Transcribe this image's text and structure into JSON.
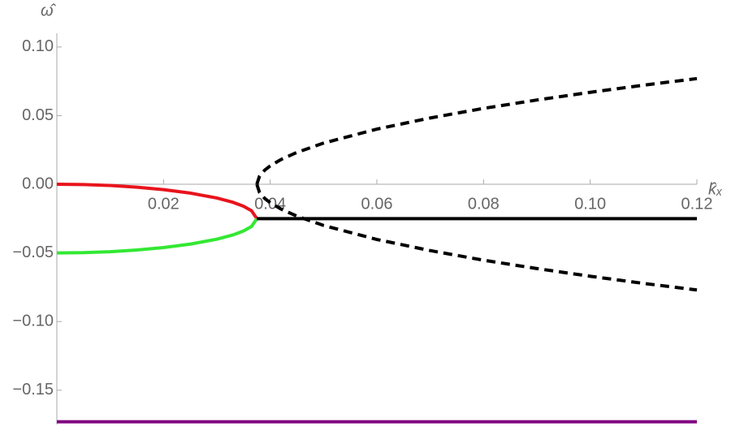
{
  "chart_data": {
    "type": "line",
    "x_label": "k̂ₓ",
    "y_label": "ω̂",
    "x": [
      0,
      0.005,
      0.01,
      0.015,
      0.02,
      0.025,
      0.03,
      0.033,
      0.035,
      0.0365,
      0.0375,
      0.038,
      0.039,
      0.04,
      0.042,
      0.045,
      0.05,
      0.06,
      0.07,
      0.08,
      0.09,
      0.1,
      0.11,
      0.12
    ],
    "series": [
      {
        "color": "#e8141c",
        "dashed": false,
        "values": [
          0,
          -0.0002,
          -0.0009,
          -0.0021,
          -0.0039,
          -0.0064,
          -0.01,
          -0.0131,
          -0.016,
          -0.0193,
          -0.025,
          null,
          null,
          null,
          null,
          null,
          null,
          null,
          null,
          null,
          null,
          null,
          null,
          null
        ]
      },
      {
        "color": "#33e833",
        "dashed": false,
        "values": [
          -0.05,
          -0.0498,
          -0.0491,
          -0.0479,
          -0.0461,
          -0.0436,
          -0.04,
          -0.0369,
          -0.034,
          -0.0307,
          -0.025,
          null,
          null,
          null,
          null,
          null,
          null,
          null,
          null,
          null,
          null,
          null,
          null,
          null
        ]
      },
      {
        "color": "#000000",
        "dashed": false,
        "values": [
          null,
          null,
          null,
          null,
          null,
          null,
          null,
          null,
          null,
          null,
          -0.025,
          -0.025,
          -0.025,
          -0.025,
          -0.025,
          -0.025,
          -0.025,
          -0.025,
          -0.025,
          -0.025,
          -0.025,
          -0.025,
          -0.025,
          -0.025
        ]
      },
      {
        "color": "#000000",
        "dashed": true,
        "values": [
          null,
          null,
          null,
          null,
          null,
          null,
          null,
          null,
          null,
          null,
          0,
          0.006,
          0.0104,
          0.0134,
          0.018,
          0.0232,
          0.03,
          0.0402,
          0.0483,
          0.0553,
          0.0614,
          0.067,
          0.0722,
          0.077
        ]
      },
      {
        "color": "#000000",
        "dashed": true,
        "values": [
          null,
          null,
          null,
          null,
          null,
          null,
          null,
          null,
          null,
          null,
          0,
          -0.006,
          -0.0104,
          -0.0134,
          -0.018,
          -0.0232,
          -0.03,
          -0.0402,
          -0.0483,
          -0.0553,
          -0.0614,
          -0.067,
          -0.0722,
          -0.077
        ]
      },
      {
        "color": "#800080",
        "dashed": false,
        "values": [
          -0.173,
          -0.173,
          -0.173,
          -0.173,
          -0.173,
          -0.173,
          -0.173,
          -0.173,
          -0.173,
          -0.173,
          -0.173,
          -0.173,
          -0.173,
          -0.173,
          -0.173,
          -0.173,
          -0.173,
          -0.173,
          -0.173,
          -0.173,
          -0.173,
          -0.173,
          -0.173,
          -0.173
        ]
      }
    ],
    "xlim": [
      0,
      0.12
    ],
    "ylim": [
      -0.175,
      0.11
    ],
    "xticks": [
      0.02,
      0.04,
      0.06,
      0.08,
      {
        "value": 0.1,
        "label": "0.10"
      },
      0.12
    ],
    "yticks": [
      {
        "value": 0.1,
        "label": "0.10"
      },
      0.05,
      {
        "value": 0,
        "label": "0.00"
      },
      {
        "value": -0.05,
        "label": "−0.05"
      },
      {
        "value": -0.1,
        "label": "−0.10"
      },
      {
        "value": -0.15,
        "label": "−0.15"
      }
    ]
  }
}
